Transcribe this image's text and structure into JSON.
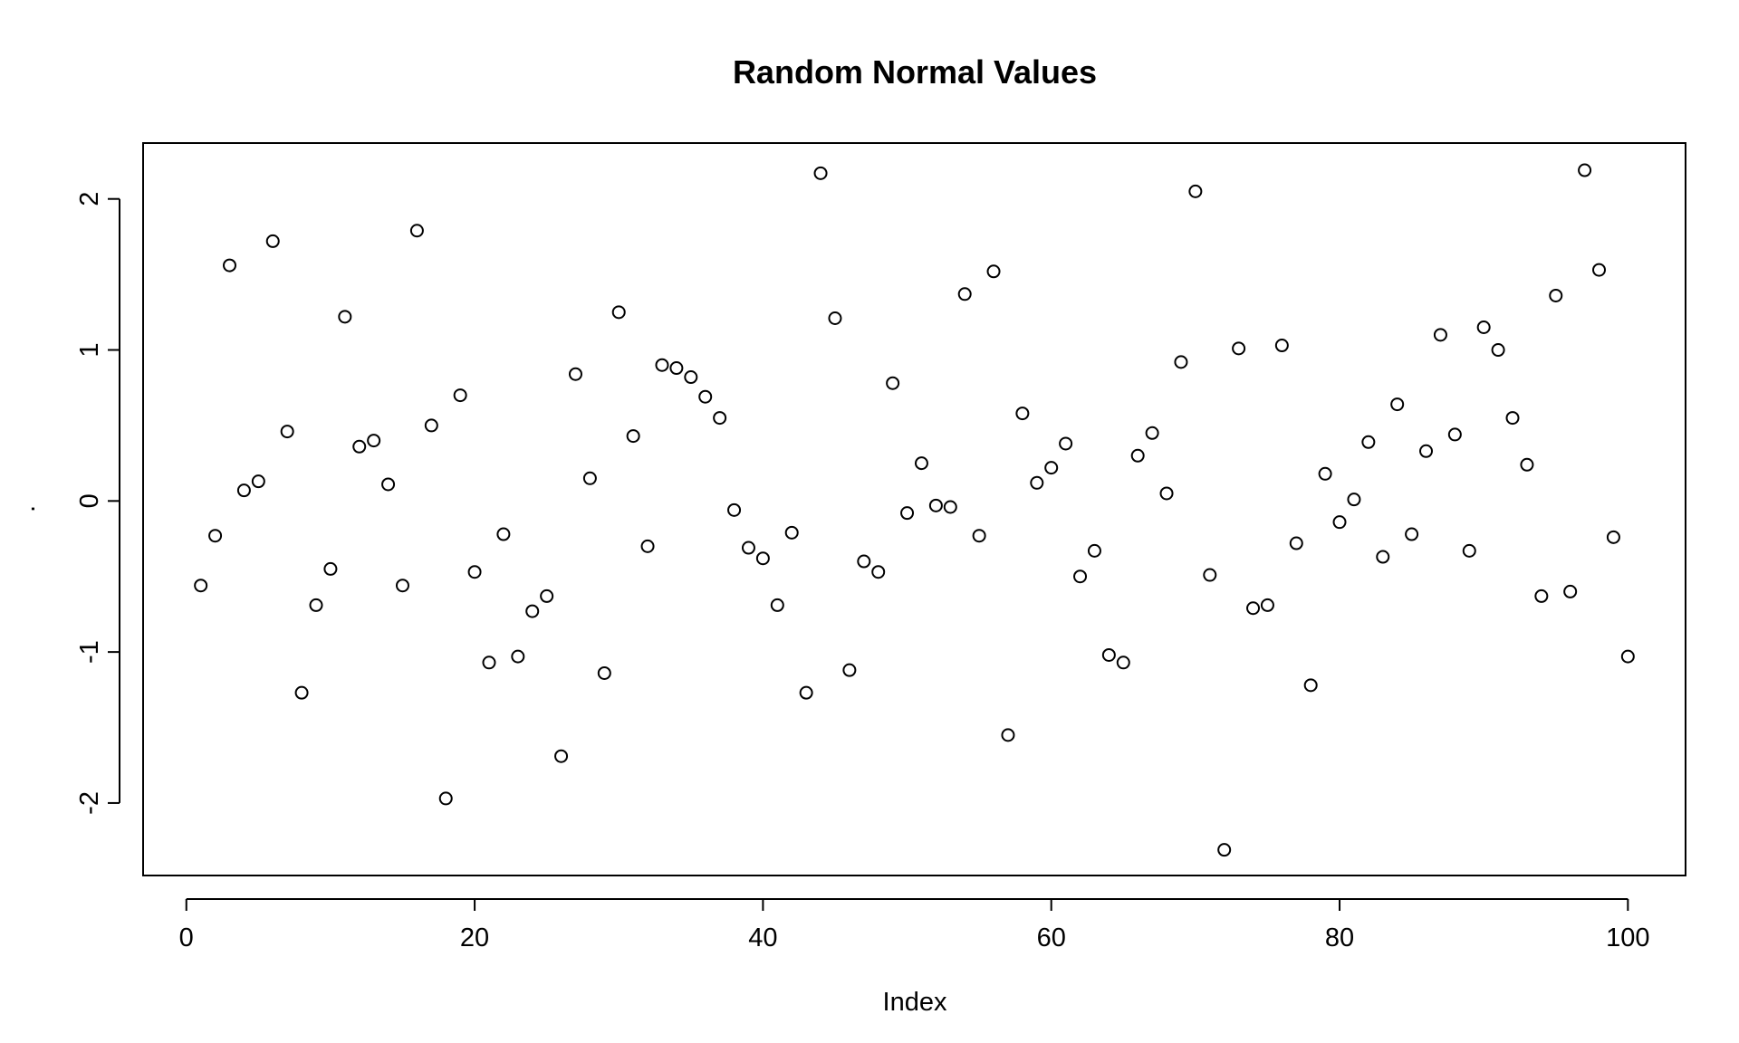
{
  "chart_data": {
    "type": "scatter",
    "title": "Random Normal Values",
    "xlabel": "Index",
    "ylabel": ".",
    "xlim": [
      -3,
      104
    ],
    "ylim": [
      -2.48,
      2.37
    ],
    "xticks": [
      0,
      20,
      40,
      60,
      80,
      100
    ],
    "yticks": [
      -2,
      -1,
      0,
      1,
      2
    ],
    "grid": false,
    "legend": "none",
    "marker": "open-circle",
    "series": [
      {
        "x": [
          1,
          2,
          3,
          4,
          5,
          6,
          7,
          8,
          9,
          10,
          11,
          12,
          13,
          14,
          15,
          16,
          17,
          18,
          19,
          20,
          21,
          22,
          23,
          24,
          25,
          26,
          27,
          28,
          29,
          30,
          31,
          32,
          33,
          34,
          35,
          36,
          37,
          38,
          39,
          40,
          41,
          42,
          43,
          44,
          45,
          46,
          47,
          48,
          49,
          50,
          51,
          52,
          53,
          54,
          55,
          56,
          57,
          58,
          59,
          60,
          61,
          62,
          63,
          64,
          65,
          66,
          67,
          68,
          69,
          70,
          71,
          72,
          73,
          74,
          75,
          76,
          77,
          78,
          79,
          80,
          81,
          82,
          83,
          84,
          85,
          86,
          87,
          88,
          89,
          90,
          91,
          92,
          93,
          94,
          95,
          96,
          97,
          98,
          99,
          100
        ],
        "y": [
          -0.56,
          -0.23,
          1.56,
          0.07,
          0.13,
          1.72,
          0.46,
          -1.27,
          -0.69,
          -0.45,
          1.22,
          0.36,
          0.4,
          0.11,
          -0.56,
          1.79,
          0.5,
          -1.97,
          0.7,
          -0.47,
          -1.07,
          -0.22,
          -1.03,
          -0.73,
          -0.63,
          -1.69,
          0.84,
          0.15,
          -1.14,
          1.25,
          0.43,
          -0.3,
          0.9,
          0.88,
          0.82,
          0.69,
          0.55,
          -0.06,
          -0.31,
          -0.38,
          -0.69,
          -0.21,
          -1.27,
          2.17,
          1.21,
          -1.12,
          -0.4,
          -0.47,
          0.78,
          -0.08,
          0.25,
          -0.03,
          -0.04,
          1.37,
          -0.23,
          1.52,
          -1.55,
          0.58,
          0.12,
          0.22,
          0.38,
          -0.5,
          -0.33,
          -1.02,
          -1.07,
          0.3,
          0.45,
          0.05,
          0.92,
          2.05,
          -0.49,
          -2.31,
          1.01,
          -0.71,
          -0.69,
          1.03,
          -0.28,
          -1.22,
          0.18,
          -0.14,
          0.01,
          0.39,
          -0.37,
          0.64,
          -0.22,
          0.33,
          1.1,
          0.44,
          -0.33,
          1.15,
          1.0,
          0.55,
          0.24,
          -0.63,
          1.36,
          -0.6,
          2.19,
          1.53,
          -0.24,
          -1.03
        ]
      }
    ]
  }
}
